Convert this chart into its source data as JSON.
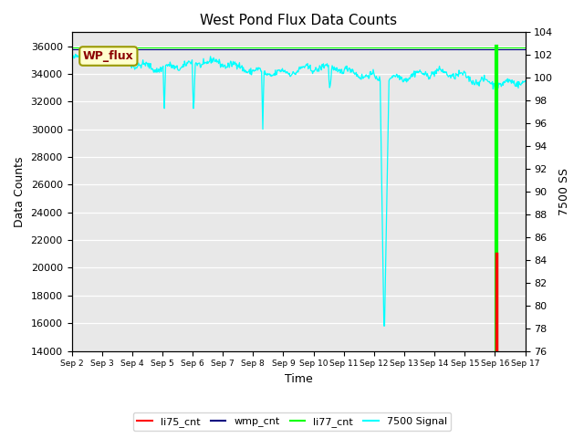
{
  "title": "West Pond Flux Data Counts",
  "xlabel": "Time",
  "ylabel_left": "Data Counts",
  "ylabel_right": "7500 SS",
  "ylim_left": [
    14000,
    37000
  ],
  "ylim_right": [
    76,
    104
  ],
  "yticks_left": [
    14000,
    16000,
    18000,
    20000,
    22000,
    24000,
    26000,
    28000,
    30000,
    32000,
    34000,
    36000
  ],
  "yticks_right": [
    76,
    78,
    80,
    82,
    84,
    86,
    88,
    90,
    92,
    94,
    96,
    98,
    100,
    102,
    104
  ],
  "bg_color": "#e8e8e8",
  "legend_box_color": "#ffffcc",
  "legend_box_edge": "#999900",
  "legend_box_text": "WP_flux",
  "colors": {
    "li75_cnt": "red",
    "wmp_cnt": "blue",
    "li77_cnt": "lime",
    "signal_7500": "cyan"
  },
  "n_days": 15,
  "x_tick_labels": [
    "Sep 2",
    "Sep 3",
    "Sep 4",
    "Sep 5",
    "Sep 6",
    "Sep 7",
    "Sep 8",
    "Sep 9",
    "Sep 10",
    "Sep 11",
    "Sep 12",
    "Sep 13",
    "Sep 14",
    "Sep 15",
    "Sep 16",
    "Sep 17"
  ]
}
